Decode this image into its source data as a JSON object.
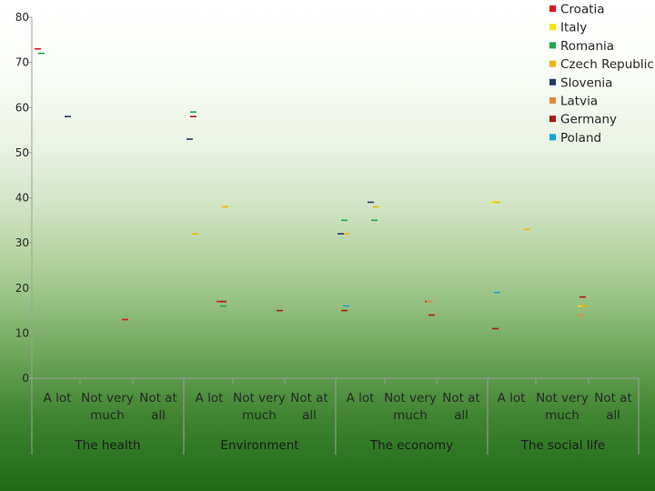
{
  "chart_data": {
    "type": "scatter",
    "title": "",
    "xlabel": "",
    "ylabel": "",
    "ylim": [
      0,
      80
    ],
    "yticks": [
      "0",
      "10",
      "20",
      "30",
      "40",
      "50",
      "60",
      "70",
      "80"
    ],
    "grid": false,
    "legend_position": "top-right",
    "groups": [
      {
        "name": "The health",
        "categories": [
          "A lot",
          "Not very much",
          "Not at all"
        ]
      },
      {
        "name": "Environment",
        "categories": [
          "A lot",
          "Not very much",
          "Not at all"
        ]
      },
      {
        "name": "The economy",
        "categories": [
          "A lot",
          "Not very much",
          "Not at all"
        ]
      },
      {
        "name": "The social life",
        "categories": [
          "A lot",
          "Not very much",
          "Not at all"
        ]
      }
    ],
    "series": [
      {
        "name": "Croatia",
        "color": "#e0141e",
        "values": [
          73,
          null,
          13,
          null,
          17,
          null,
          null,
          null,
          17,
          null,
          null,
          null
        ]
      },
      {
        "name": "Italy",
        "color": "#f2e600",
        "values": [
          null,
          null,
          null,
          null,
          null,
          null,
          null,
          null,
          null,
          39,
          null,
          16
        ]
      },
      {
        "name": "Romania",
        "color": "#1fa64a",
        "values": [
          72,
          null,
          null,
          59,
          16,
          null,
          35,
          35,
          null,
          null,
          null,
          null
        ]
      },
      {
        "name": "Czech Republic",
        "color": "#f0b400",
        "values": [
          null,
          null,
          null,
          32,
          38,
          null,
          32,
          38,
          null,
          39,
          33,
          16
        ]
      },
      {
        "name": "Slovenia",
        "color": "#203864",
        "values": [
          null,
          58,
          null,
          53,
          null,
          null,
          32,
          39,
          null,
          null,
          null,
          null
        ]
      },
      {
        "name": "Latvia",
        "color": "#e08a3c",
        "values": [
          null,
          null,
          null,
          null,
          null,
          null,
          null,
          null,
          17,
          null,
          null,
          14
        ]
      },
      {
        "name": "Germany",
        "color": "#a51b12",
        "values": [
          null,
          null,
          null,
          58,
          17,
          15,
          15,
          null,
          14,
          11,
          null,
          18
        ]
      },
      {
        "name": "Poland",
        "color": "#12a5d8",
        "values": [
          null,
          null,
          null,
          null,
          null,
          null,
          16,
          null,
          null,
          19,
          null,
          null
        ]
      }
    ]
  }
}
